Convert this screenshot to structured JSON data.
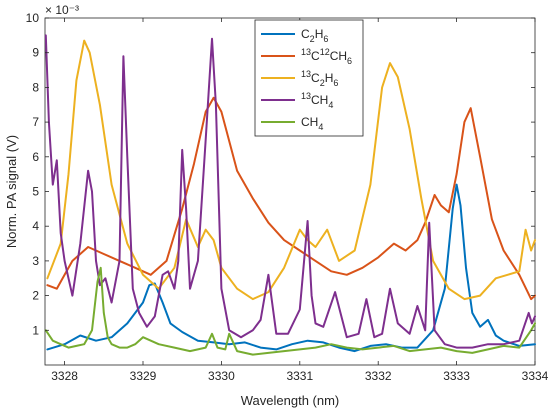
{
  "chart_data": {
    "type": "line",
    "xlabel": "Wavelength (nm)",
    "ylabel": "Norm. PA signal (V)",
    "y_multiplier_label": "× 10⁻³",
    "xlim": [
      3327.75,
      3334.0
    ],
    "ylim": [
      0,
      10
    ],
    "x_ticks": [
      3328,
      3329,
      3330,
      3331,
      3332,
      3333,
      3334
    ],
    "y_ticks": [
      1,
      2,
      3,
      4,
      5,
      6,
      7,
      8,
      9,
      10
    ],
    "grid": false,
    "legend_position": "top-center",
    "series": [
      {
        "name": "C2H6",
        "label_parts": [
          [
            "C",
            false
          ],
          [
            "2",
            "sub"
          ],
          [
            "H",
            false
          ],
          [
            "6",
            "sub"
          ]
        ],
        "color": "#0072BD",
        "x": [
          3327.78,
          3328.0,
          3328.2,
          3328.4,
          3328.6,
          3328.8,
          3329.0,
          3329.08,
          3329.15,
          3329.25,
          3329.35,
          3329.5,
          3329.7,
          3329.9,
          3330.1,
          3330.3,
          3330.5,
          3330.7,
          3330.9,
          3331.1,
          3331.3,
          3331.5,
          3331.7,
          3331.9,
          3332.1,
          3332.3,
          3332.5,
          3332.7,
          3332.85,
          3332.95,
          3333.0,
          3333.05,
          3333.12,
          3333.2,
          3333.3,
          3333.4,
          3333.5,
          3333.6,
          3333.8,
          3334.0
        ],
        "values": [
          0.45,
          0.6,
          0.85,
          0.7,
          0.8,
          1.2,
          1.8,
          2.3,
          2.35,
          1.8,
          1.2,
          0.95,
          0.7,
          0.65,
          0.6,
          0.65,
          0.5,
          0.45,
          0.6,
          0.7,
          0.65,
          0.5,
          0.4,
          0.55,
          0.6,
          0.5,
          0.5,
          1.0,
          2.2,
          4.5,
          5.2,
          4.6,
          2.8,
          1.5,
          1.1,
          1.3,
          0.85,
          0.7,
          0.55,
          0.6
        ]
      },
      {
        "name": "13C12CH6",
        "label_parts": [
          [
            "13",
            "sup"
          ],
          [
            "C",
            false
          ],
          [
            "12",
            "sup"
          ],
          [
            "CH",
            false
          ],
          [
            "6",
            "sub"
          ]
        ],
        "color": "#D95319",
        "x": [
          3327.78,
          3327.9,
          3328.0,
          3328.1,
          3328.3,
          3328.5,
          3328.7,
          3328.9,
          3329.1,
          3329.3,
          3329.5,
          3329.65,
          3329.8,
          3329.9,
          3330.0,
          3330.2,
          3330.4,
          3330.6,
          3330.8,
          3331.0,
          3331.2,
          3331.4,
          3331.6,
          3331.8,
          3332.0,
          3332.2,
          3332.35,
          3332.5,
          3332.6,
          3332.72,
          3332.8,
          3332.9,
          3333.0,
          3333.1,
          3333.18,
          3333.3,
          3333.45,
          3333.6,
          3333.8,
          3333.95,
          3334.0
        ],
        "values": [
          2.3,
          2.2,
          2.6,
          3.0,
          3.4,
          3.2,
          3.0,
          2.8,
          2.6,
          3.0,
          4.5,
          5.8,
          7.3,
          7.7,
          7.3,
          5.6,
          4.8,
          4.1,
          3.6,
          3.3,
          3.0,
          2.7,
          2.6,
          2.8,
          3.1,
          3.5,
          3.3,
          3.6,
          4.1,
          4.9,
          4.6,
          4.4,
          5.5,
          7.0,
          7.4,
          6.0,
          4.2,
          3.3,
          2.6,
          1.9,
          2.0
        ]
      },
      {
        "name": "13C2H6",
        "label_parts": [
          [
            "13",
            "sup"
          ],
          [
            "C",
            false
          ],
          [
            "2",
            "sub"
          ],
          [
            "H",
            false
          ],
          [
            "6",
            "sub"
          ]
        ],
        "color": "#EDB120",
        "x": [
          3327.78,
          3327.95,
          3328.05,
          3328.15,
          3328.25,
          3328.32,
          3328.45,
          3328.6,
          3328.8,
          3329.0,
          3329.2,
          3329.4,
          3329.55,
          3329.7,
          3329.8,
          3329.9,
          3330.0,
          3330.2,
          3330.4,
          3330.6,
          3330.8,
          3331.0,
          3331.1,
          3331.2,
          3331.35,
          3331.5,
          3331.7,
          3331.9,
          3332.05,
          3332.15,
          3332.25,
          3332.4,
          3332.55,
          3332.7,
          3332.9,
          3333.1,
          3333.3,
          3333.5,
          3333.65,
          3333.8,
          3333.88,
          3333.95,
          3334.0
        ],
        "values": [
          2.5,
          3.5,
          5.5,
          8.2,
          9.35,
          9.0,
          7.5,
          5.2,
          3.5,
          2.6,
          2.2,
          2.8,
          4.2,
          3.4,
          3.9,
          3.6,
          2.8,
          2.2,
          1.9,
          2.1,
          2.8,
          3.9,
          3.6,
          3.4,
          3.9,
          3.0,
          3.3,
          5.2,
          8.0,
          8.7,
          8.3,
          6.8,
          4.8,
          3.0,
          2.2,
          1.9,
          2.0,
          2.5,
          2.6,
          2.7,
          3.9,
          3.3,
          3.6
        ]
      },
      {
        "name": "13CH4",
        "label_parts": [
          [
            "13",
            "sup"
          ],
          [
            "CH",
            false
          ],
          [
            "4",
            "sub"
          ]
        ],
        "color": "#7E2F8E",
        "x": [
          3327.76,
          3327.8,
          3327.85,
          3327.9,
          3327.95,
          3328.0,
          3328.05,
          3328.1,
          3328.2,
          3328.3,
          3328.35,
          3328.4,
          3328.45,
          3328.52,
          3328.6,
          3328.7,
          3328.75,
          3328.8,
          3328.87,
          3328.95,
          3329.05,
          3329.15,
          3329.25,
          3329.32,
          3329.4,
          3329.45,
          3329.5,
          3329.55,
          3329.6,
          3329.7,
          3329.8,
          3329.88,
          3329.93,
          3330.0,
          3330.1,
          3330.25,
          3330.4,
          3330.5,
          3330.6,
          3330.7,
          3330.85,
          3331.0,
          3331.1,
          3331.15,
          3331.2,
          3331.3,
          3331.45,
          3331.6,
          3331.75,
          3331.85,
          3331.95,
          3332.05,
          3332.15,
          3332.25,
          3332.4,
          3332.5,
          3332.6,
          3332.65,
          3332.72,
          3332.85,
          3333.0,
          3333.2,
          3333.4,
          3333.6,
          3333.8,
          3333.92,
          3333.96,
          3334.0
        ],
        "values": [
          9.5,
          7.0,
          5.2,
          5.9,
          3.8,
          3.0,
          2.5,
          2.0,
          3.5,
          5.6,
          5.0,
          3.0,
          2.3,
          2.5,
          1.8,
          3.0,
          8.9,
          6.0,
          2.2,
          1.5,
          1.1,
          1.4,
          2.6,
          2.7,
          2.2,
          3.0,
          6.2,
          4.5,
          2.2,
          3.0,
          6.5,
          9.4,
          7.5,
          2.2,
          1.0,
          0.8,
          1.0,
          1.3,
          2.6,
          0.9,
          0.9,
          1.6,
          4.15,
          2.0,
          1.2,
          1.1,
          2.1,
          0.8,
          0.9,
          1.9,
          0.8,
          0.9,
          2.2,
          1.2,
          0.9,
          1.7,
          1.0,
          4.1,
          1.0,
          0.6,
          0.5,
          0.5,
          0.6,
          0.6,
          0.7,
          1.5,
          1.2,
          1.4
        ]
      },
      {
        "name": "CH4",
        "label_parts": [
          [
            "CH",
            false
          ],
          [
            "4",
            "sub"
          ]
        ],
        "color": "#77AC30",
        "x": [
          3327.76,
          3327.85,
          3327.95,
          3328.05,
          3328.15,
          3328.25,
          3328.35,
          3328.42,
          3328.46,
          3328.5,
          3328.55,
          3328.6,
          3328.7,
          3328.8,
          3328.9,
          3329.0,
          3329.2,
          3329.4,
          3329.6,
          3329.8,
          3329.88,
          3329.95,
          3330.05,
          3330.1,
          3330.2,
          3330.4,
          3330.6,
          3330.8,
          3331.0,
          3331.2,
          3331.4,
          3331.6,
          3331.8,
          3332.0,
          3332.2,
          3332.4,
          3332.6,
          3332.8,
          3333.0,
          3333.2,
          3333.4,
          3333.6,
          3333.8,
          3333.95,
          3334.0
        ],
        "values": [
          1.0,
          0.7,
          0.6,
          0.5,
          0.55,
          0.6,
          1.0,
          2.4,
          2.8,
          1.5,
          0.8,
          0.6,
          0.5,
          0.5,
          0.6,
          0.8,
          0.6,
          0.5,
          0.4,
          0.5,
          0.9,
          0.5,
          0.45,
          0.9,
          0.4,
          0.3,
          0.35,
          0.4,
          0.45,
          0.5,
          0.6,
          0.5,
          0.45,
          0.5,
          0.55,
          0.4,
          0.45,
          0.5,
          0.4,
          0.35,
          0.45,
          0.55,
          0.5,
          1.0,
          1.2
        ]
      }
    ]
  }
}
